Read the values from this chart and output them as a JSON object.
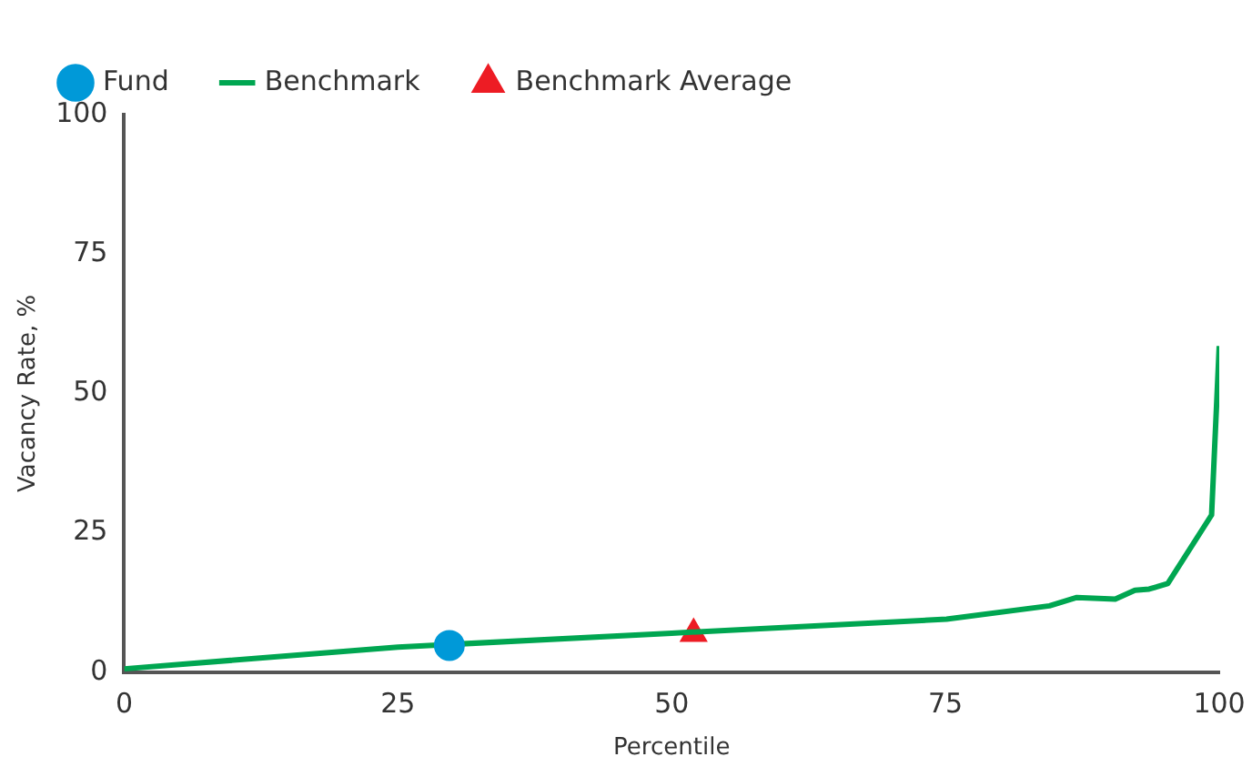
{
  "chart_data": {
    "type": "line",
    "xlabel": "Percentile",
    "ylabel": "Vacancy Rate, %",
    "xlim": [
      0,
      100
    ],
    "xticks": [
      0,
      25,
      50,
      75,
      100
    ],
    "ylim": [
      0,
      100
    ],
    "yticks": [
      0,
      25,
      50,
      75,
      100
    ],
    "grid": false,
    "legend": "top left",
    "series": [
      {
        "name": "Fund",
        "type": "scatter",
        "marker": "circle",
        "color": "#0099d8",
        "x": [
          29.7
        ],
        "values": [
          4.8
        ]
      },
      {
        "name": "Benchmark",
        "type": "line",
        "marker": "none",
        "color": "#00a651",
        "x": [
          0,
          25,
          50,
          75.1,
          84.5,
          87,
          90.5,
          92.3,
          93.6,
          95.3,
          99.3,
          100
        ],
        "values": [
          0.6,
          4.5,
          7.0,
          9.5,
          11.9,
          13.4,
          13.1,
          14.7,
          14.9,
          15.9,
          28.2,
          58.5
        ]
      },
      {
        "name": "Benchmark Average",
        "type": "scatter",
        "marker": "triangle",
        "color": "#ed1c24",
        "x": [
          52
        ],
        "values": [
          6.9
        ]
      }
    ]
  }
}
